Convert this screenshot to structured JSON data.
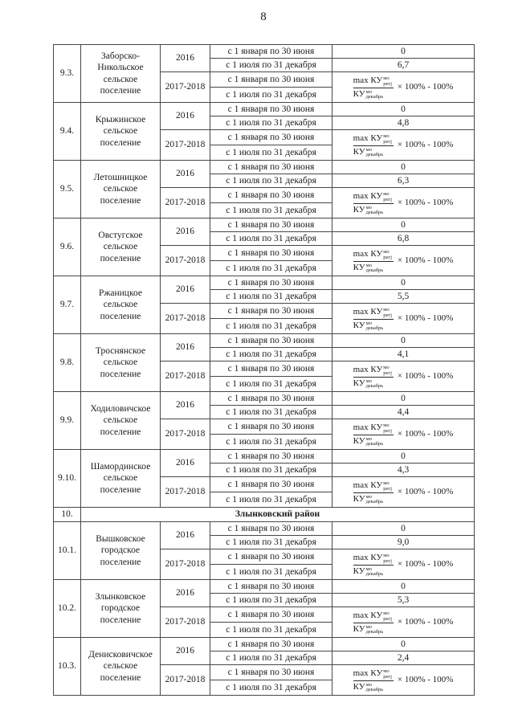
{
  "page": {
    "number": "8"
  },
  "labels": {
    "year_2016": "2016",
    "year_2017_2018": "2017-2018",
    "first_half": "с 1 января по 30 июня",
    "second_half": "с 1 июля по 31 декабря"
  },
  "formula": {
    "numerator": "max КУ",
    "sup": "мо",
    "numerator_sub": "регj",
    "denominator": "КУ",
    "denominator_sub": "декабрь",
    "suffix": "× 100% - 100%"
  },
  "table": {
    "rows": [
      {
        "num": "9.3.",
        "name": "Заборско-Никольское сельское поселение",
        "value_2016_h1": "0",
        "value_2016_h2": "6,7"
      },
      {
        "num": "9.4.",
        "name": "Крыжинское сельское поселение",
        "value_2016_h1": "0",
        "value_2016_h2": "4,8"
      },
      {
        "num": "9.5.",
        "name": "Летошницкое сельское поселение",
        "value_2016_h1": "0",
        "value_2016_h2": "6,3"
      },
      {
        "num": "9.6.",
        "name": "Овстугское сельское поселение",
        "value_2016_h1": "0",
        "value_2016_h2": "6,8"
      },
      {
        "num": "9.7.",
        "name": "Ржаницкое сельское поселение",
        "value_2016_h1": "0",
        "value_2016_h2": "5,5"
      },
      {
        "num": "9.8.",
        "name": "Троснянское сельское поселение",
        "value_2016_h1": "0",
        "value_2016_h2": "4,1"
      },
      {
        "num": "9.9.",
        "name": "Ходиловичское сельское поселение",
        "value_2016_h1": "0",
        "value_2016_h2": "4,4"
      },
      {
        "num": "9.10.",
        "name": "Шамординское сельское поселение",
        "value_2016_h1": "0",
        "value_2016_h2": "4,3"
      },
      {
        "num": "10.",
        "district": true,
        "title": "Злынковский район"
      },
      {
        "num": "10.1.",
        "name": "Вышковское городское поселение",
        "value_2016_h1": "0",
        "value_2016_h2": "9,0"
      },
      {
        "num": "10.2.",
        "name": "Злынковское городское поселение",
        "value_2016_h1": "0",
        "value_2016_h2": "5,3"
      },
      {
        "num": "10.3.",
        "name": "Денисковичское сельское поселение",
        "value_2016_h1": "0",
        "value_2016_h2": "2,4"
      }
    ]
  }
}
